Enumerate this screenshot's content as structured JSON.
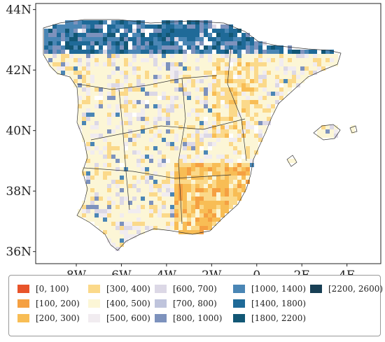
{
  "map": {
    "lat_labels": [
      "44N",
      "42N",
      "40N",
      "38N",
      "36N"
    ],
    "lon_labels": [
      "8W",
      "6W",
      "4W",
      "2W",
      "0",
      "2E",
      "4E"
    ],
    "lat_values": [
      44,
      42,
      40,
      38,
      36
    ],
    "lon_values": [
      -8,
      -6,
      -4,
      -2,
      0,
      2,
      4
    ],
    "extent": {
      "lon_min": -9.8,
      "lon_max": 5.5,
      "lat_min": 35.6,
      "lat_max": 44.2
    },
    "classes": [
      {
        "label": "[0, 100)",
        "color": "#e8542a"
      },
      {
        "label": "[100, 200)",
        "color": "#f5a042"
      },
      {
        "label": "[200, 300)",
        "color": "#f8bd55"
      },
      {
        "label": "[300, 400)",
        "color": "#fbd98a"
      },
      {
        "label": "[400, 500)",
        "color": "#fcf6d6"
      },
      {
        "label": "[500, 600)",
        "color": "#f1ecf0"
      },
      {
        "label": "[600, 700)",
        "color": "#dcd8e6"
      },
      {
        "label": "[700, 800)",
        "color": "#bfc4dc"
      },
      {
        "label": "[800, 1000)",
        "color": "#7d92bd"
      },
      {
        "label": "[1000, 1400)",
        "color": "#4a86b5"
      },
      {
        "label": "[1400, 1800)",
        "color": "#1f6a98"
      },
      {
        "label": "[1800, 2200)",
        "color": "#125775"
      },
      {
        "label": "[2200, 2600)",
        "color": "#183f55"
      }
    ]
  }
}
